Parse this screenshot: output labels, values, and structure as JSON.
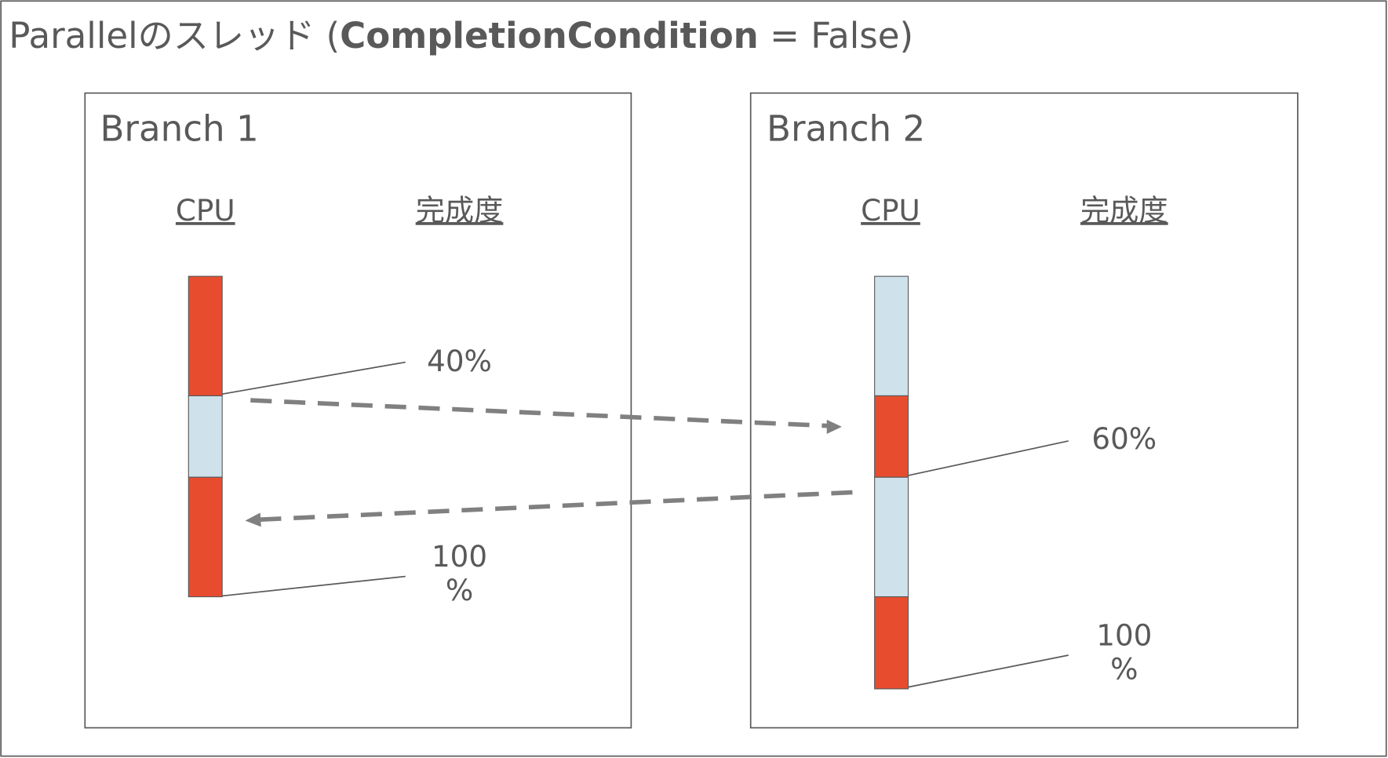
{
  "title": {
    "prefix": "Parallelのスレッド (",
    "bold": "CompletionCondition",
    "suffix": " = False)"
  },
  "branches": [
    {
      "label": "Branch 1",
      "cpu_header": "CPU",
      "progress_header": "完成度",
      "labels": [
        [
          "40%"
        ],
        [
          "100",
          "%"
        ]
      ]
    },
    {
      "label": "Branch 2",
      "cpu_header": "CPU",
      "progress_header": "完成度",
      "labels": [
        [
          "60%"
        ],
        [
          "100",
          "%"
        ]
      ]
    }
  ]
}
